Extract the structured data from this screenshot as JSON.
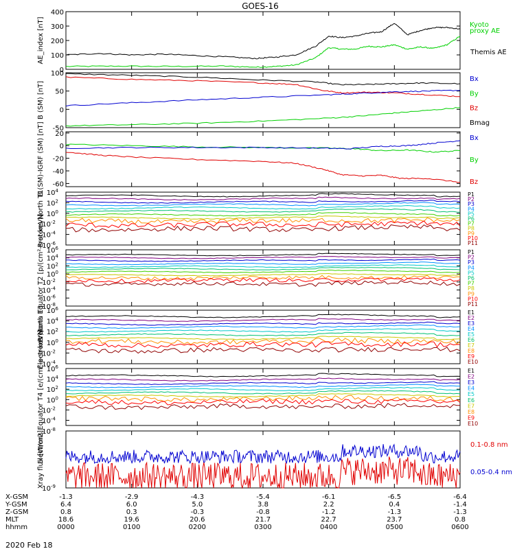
{
  "title": "GOES-16",
  "date_label": "2020 Feb 18",
  "colors": {
    "black": "#000000",
    "red": "#e00000",
    "blue": "#0000d0",
    "green": "#00d000",
    "p_colors": [
      "#000000",
      "#800080",
      "#0000d0",
      "#0090ff",
      "#00c8c8",
      "#00c070",
      "#40d000",
      "#c8c800",
      "#ff9000",
      "#ff0000",
      "#900000"
    ],
    "e_colors": [
      "#000000",
      "#800080",
      "#0000d0",
      "#0090ff",
      "#00c8c8",
      "#00c070",
      "#c8c800",
      "#ff9000",
      "#ff0000",
      "#900000"
    ]
  },
  "chart_data": [
    {
      "type": "line",
      "id": "ae",
      "ylabel": "AE_index [nT]",
      "ylim": [
        0,
        400
      ],
      "yticks": [
        {
          "v": 0,
          "l": "0"
        },
        {
          "v": 100,
          "l": "100"
        },
        {
          "v": 200,
          "l": "200"
        },
        {
          "v": 300,
          "l": "300"
        },
        {
          "v": 400,
          "l": "400"
        }
      ],
      "legend": [
        {
          "text": "Kyoto",
          "color": "green"
        },
        {
          "text": "proxy AE",
          "color": "green"
        },
        {
          "text": "Themis AE",
          "color": "black"
        }
      ],
      "series": [
        {
          "name": "Kyoto proxy AE",
          "color": "green",
          "x": [
            0,
            0.8,
            1.6,
            2.4,
            2.9,
            3.2,
            3.5,
            3.8,
            4.0,
            4.2,
            4.4,
            4.6,
            4.8,
            5.0,
            5.2,
            5.4,
            5.6,
            5.8,
            6.0
          ],
          "y": [
            20,
            22,
            20,
            22,
            15,
            20,
            30,
            80,
            150,
            140,
            140,
            160,
            155,
            170,
            140,
            155,
            145,
            170,
            230
          ]
        },
        {
          "name": "Themis AE",
          "color": "black",
          "x": [
            0,
            0.5,
            1.0,
            1.5,
            2.0,
            2.5,
            2.9,
            3.2,
            3.5,
            3.8,
            4.0,
            4.2,
            4.4,
            4.6,
            4.8,
            5.0,
            5.2,
            5.4,
            5.6,
            5.8,
            6.0
          ],
          "y": [
            100,
            110,
            100,
            105,
            95,
            85,
            75,
            85,
            100,
            160,
            230,
            220,
            230,
            250,
            260,
            320,
            240,
            270,
            290,
            290,
            280
          ]
        }
      ]
    },
    {
      "type": "line",
      "id": "bsm",
      "ylabel": "B (SM) [nT]",
      "ylim": [
        -50,
        100
      ],
      "yticks": [
        {
          "v": -50,
          "l": "-50"
        },
        {
          "v": 0,
          "l": "0"
        },
        {
          "v": 50,
          "l": "50"
        },
        {
          "v": 100,
          "l": "100"
        }
      ],
      "legend": [
        {
          "text": "Bx",
          "color": "blue"
        },
        {
          "text": "By",
          "color": "green"
        },
        {
          "text": "Bz",
          "color": "red"
        },
        {
          "text": "Bmag",
          "color": "black"
        }
      ],
      "series": [
        {
          "name": "Bmag",
          "color": "black",
          "x": [
            0,
            1,
            2,
            3,
            3.8,
            4.2,
            4.6,
            5.0,
            5.4,
            6.0
          ],
          "y": [
            97,
            93,
            88,
            80,
            75,
            67,
            68,
            70,
            72,
            70
          ]
        },
        {
          "name": "Bz",
          "color": "red",
          "x": [
            0,
            1,
            2,
            3,
            3.5,
            3.9,
            4.2,
            4.6,
            5.0,
            5.5,
            6.0
          ],
          "y": [
            88,
            82,
            78,
            72,
            68,
            52,
            45,
            47,
            45,
            40,
            35
          ]
        },
        {
          "name": "Bx",
          "color": "blue",
          "x": [
            0,
            1,
            2,
            3,
            4,
            4.5,
            5,
            5.5,
            6.0
          ],
          "y": [
            10,
            18,
            26,
            33,
            40,
            44,
            48,
            50,
            52
          ]
        },
        {
          "name": "By",
          "color": "green",
          "x": [
            0,
            1,
            2,
            3,
            4,
            4.5,
            5,
            5.5,
            6.0
          ],
          "y": [
            -45,
            -42,
            -38,
            -32,
            -24,
            -18,
            -10,
            -3,
            5
          ]
        }
      ]
    },
    {
      "type": "line",
      "id": "bigrf",
      "ylabel": "B (SM)-IGRF (SM) [nT]",
      "ylim": [
        -65,
        22
      ],
      "yticks": [
        {
          "v": -60,
          "l": "-60"
        },
        {
          "v": -40,
          "l": "-40"
        },
        {
          "v": -20,
          "l": "-20"
        },
        {
          "v": 0,
          "l": "0"
        },
        {
          "v": 20,
          "l": "20"
        }
      ],
      "legend": [
        {
          "text": "Bx",
          "color": "blue"
        },
        {
          "text": "By",
          "color": "green"
        },
        {
          "text": "Bz",
          "color": "red"
        }
      ],
      "series": [
        {
          "name": "By",
          "color": "green",
          "x": [
            0,
            1,
            2,
            3,
            4,
            4.4,
            4.8,
            5.2,
            5.6,
            6.0
          ],
          "y": [
            2,
            0,
            -2,
            -3,
            -4,
            -5,
            -8,
            -7,
            -10,
            -8
          ]
        },
        {
          "name": "Bx",
          "color": "blue",
          "x": [
            0,
            1,
            2,
            3,
            3.9,
            4.3,
            4.8,
            5.2,
            5.6,
            6.0
          ],
          "y": [
            -4,
            -3,
            -3,
            -3,
            -4,
            -5,
            -1,
            0,
            4,
            8
          ]
        },
        {
          "name": "Bz",
          "color": "red",
          "x": [
            0,
            0.5,
            1,
            2,
            3,
            3.5,
            3.9,
            4.2,
            4.5,
            4.8,
            5.1,
            5.5,
            6.0
          ],
          "y": [
            -10,
            -15,
            -18,
            -22,
            -25,
            -28,
            -37,
            -46,
            -48,
            -47,
            -52,
            -52,
            -58
          ]
        }
      ]
    },
    {
      "type": "line",
      "id": "pn",
      "log": true,
      "ylabel": "Protons North T1",
      "ylim": [
        -6,
        4
      ],
      "yticks": [
        {
          "v": 4,
          "l": "10^4"
        },
        {
          "v": 2,
          "l": "10^2"
        },
        {
          "v": 0,
          "l": "10^0"
        },
        {
          "v": -2,
          "l": "10^-2"
        },
        {
          "v": -4,
          "l": "10^-4"
        },
        {
          "v": -6,
          "l": "10^-6"
        }
      ],
      "legend": [
        "P1",
        "P2",
        "P3",
        "P4",
        "P5",
        "P6",
        "P7",
        "P8",
        "P9",
        "P10",
        "P11"
      ],
      "series_levels": [
        3.3,
        2.7,
        2.1,
        1.6,
        1.0,
        0.4,
        -0.3,
        -0.9,
        -1.5,
        -2.2,
        -3.0
      ]
    },
    {
      "type": "line",
      "id": "pe",
      "log": true,
      "ylabel": "Protons Equator T2 [p/(cm²-s-sr-keV)]",
      "ylim": [
        -8,
        6
      ],
      "yticks": [
        {
          "v": 6,
          "l": "10^6"
        },
        {
          "v": 4,
          "l": "10^4"
        },
        {
          "v": 2,
          "l": "10^2"
        },
        {
          "v": 0,
          "l": "10^0"
        },
        {
          "v": -2,
          "l": "10^-2"
        },
        {
          "v": -4,
          "l": "10^-4"
        },
        {
          "v": -6,
          "l": "10^-6"
        },
        {
          "v": -8,
          "l": "10^-8"
        }
      ],
      "legend": [
        "P1",
        "P2",
        "P3",
        "P4",
        "P5",
        "P6",
        "P7",
        "P8",
        "P9",
        "P10",
        "P11"
      ],
      "series_levels": [
        4.7,
        4.0,
        3.3,
        2.5,
        1.8,
        1.2,
        0.5,
        -0.3,
        -1.0,
        -1.6,
        -2.5
      ]
    },
    {
      "type": "line",
      "id": "en",
      "log": true,
      "ylabel": "Electrons North T3",
      "ylim": [
        -4,
        6
      ],
      "yticks": [
        {
          "v": 6,
          "l": "10^6"
        },
        {
          "v": 4,
          "l": "10^4"
        },
        {
          "v": 2,
          "l": "10^2"
        },
        {
          "v": 0,
          "l": "10^0"
        },
        {
          "v": -2,
          "l": "10^-2"
        },
        {
          "v": -4,
          "l": "10^-4"
        }
      ],
      "legend": [
        "E1",
        "E2",
        "E3",
        "E4",
        "E5",
        "E6",
        "E7",
        "E8",
        "E9",
        "E10"
      ],
      "series_levels": [
        4.8,
        4.1,
        3.4,
        2.8,
        2.1,
        1.4,
        0.7,
        0.1,
        -0.5,
        -1.5
      ]
    },
    {
      "type": "line",
      "id": "ee",
      "log": true,
      "ylabel": "Electrons Equator T4 [e/(cm²-s-sr-keV)]",
      "ylim": [
        -5,
        6
      ],
      "yticks": [
        {
          "v": 6,
          "l": "10^6"
        },
        {
          "v": 4,
          "l": "10^4"
        },
        {
          "v": 2,
          "l": "10^2"
        },
        {
          "v": 0,
          "l": "10^0"
        },
        {
          "v": -2,
          "l": "10^-2"
        },
        {
          "v": -4,
          "l": "10^-4"
        }
      ],
      "legend": [
        "E1",
        "E2",
        "E3",
        "E4",
        "E5",
        "E6",
        "E7",
        "E8",
        "E9",
        "E10"
      ],
      "series_levels": [
        4.6,
        3.8,
        3.1,
        2.5,
        1.9,
        1.3,
        0.7,
        0.1,
        -0.5,
        -1.4
      ]
    },
    {
      "type": "line",
      "id": "xray",
      "log": true,
      "ylabel": "Xray flux [W/m2]",
      "ylim": [
        -9,
        -8
      ],
      "yticks": [
        {
          "v": -8,
          "l": "10^-8"
        },
        {
          "v": -9,
          "l": "10^-9"
        }
      ],
      "legend": [
        {
          "text": "0.1-0.8 nm",
          "color": "red"
        },
        {
          "text": "0.05-0.4 nm",
          "color": "blue"
        }
      ],
      "series": [
        {
          "name": "0.05-0.4 nm",
          "color": "blue",
          "level": -8.45,
          "noise": 0.12
        },
        {
          "name": "0.1-0.8 nm",
          "color": "red",
          "level": -8.8,
          "noise": 0.25
        }
      ]
    }
  ],
  "xaxis": {
    "rows": [
      {
        "label": "X-GSM",
        "values": [
          "-1.3",
          "-2.9",
          "-4.3",
          "-5.4",
          "-6.1",
          "-6.5",
          "-6.4"
        ]
      },
      {
        "label": "Y-GSM",
        "values": [
          "6.4",
          "6.0",
          "5.0",
          "3.8",
          "2.2",
          "0.4",
          "-1.4"
        ]
      },
      {
        "label": "Z-GSM",
        "values": [
          "0.8",
          "0.3",
          "-0.3",
          "-0.8",
          "-1.2",
          "-1.3",
          "-1.3"
        ]
      },
      {
        "label": "MLT",
        "values": [
          "18.6",
          "19.6",
          "20.6",
          "21.7",
          "22.7",
          "23.7",
          "0.8"
        ]
      },
      {
        "label": "hhmm",
        "values": [
          "0000",
          "0100",
          "0200",
          "0300",
          "0400",
          "0500",
          "0600"
        ]
      }
    ]
  }
}
